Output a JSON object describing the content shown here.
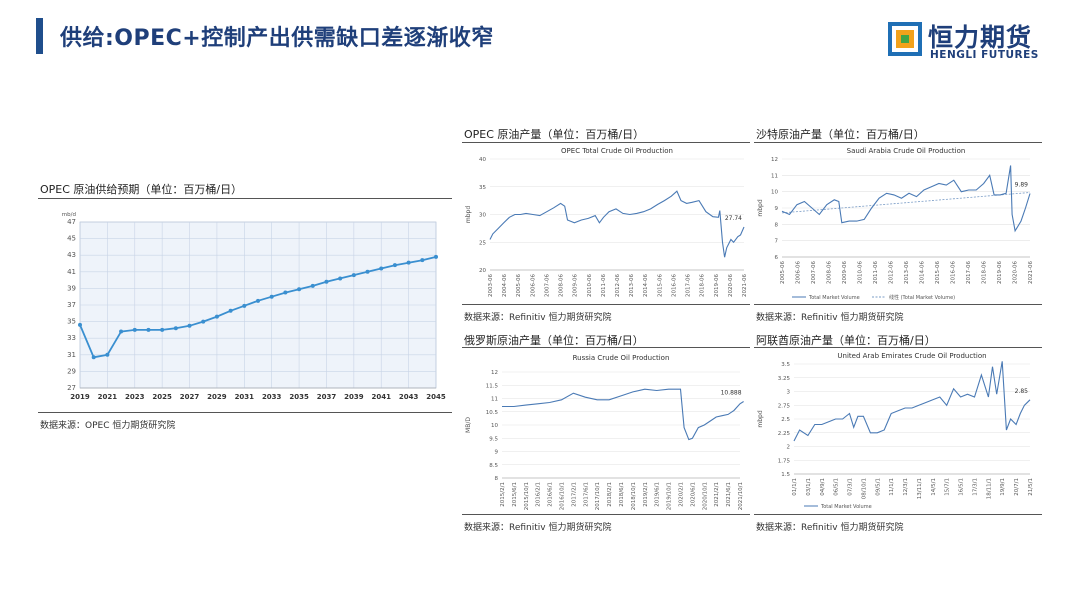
{
  "header": {
    "title": "供给:OPEC+控制产出供需缺口差逐渐收窄",
    "logo_cn": "恒力期货",
    "logo_en": "HENGLI FUTURES"
  },
  "colors": {
    "accent": "#1f4e8c",
    "line": "#4a7ab5",
    "trend": "#7a9cc6"
  },
  "panels": {
    "opec_forecast": {
      "title": "OPEC 原油供给预期（单位：百万桶/日）",
      "source": "数据来源：OPEC 恒力期货研究院"
    },
    "opec_prod": {
      "title": "OPEC 原油产量（单位：百万桶/日）",
      "source": "数据来源：Refinitiv 恒力期货研究院"
    },
    "saudi": {
      "title": "沙特原油产量（单位：百万桶/日）",
      "source": "数据来源：Refinitiv 恒力期货研究院"
    },
    "russia": {
      "title": "俄罗斯原油产量（单位：百万桶/日）",
      "source": "数据来源：Refinitiv 恒力期货研究院"
    },
    "uae": {
      "title": "阿联酋原油产量（单位：百万桶/日）",
      "source": "数据来源：Refinitiv 恒力期货研究院"
    }
  },
  "chart_data": [
    {
      "id": "opec_forecast",
      "type": "line",
      "ylabel": "mb/d",
      "ylim": [
        27,
        47
      ],
      "yticks": [
        27,
        29,
        31,
        33,
        35,
        37,
        39,
        41,
        43,
        45,
        47
      ],
      "x": [
        2019,
        2020,
        2021,
        2022,
        2023,
        2024,
        2025,
        2026,
        2027,
        2028,
        2029,
        2030,
        2031,
        2032,
        2033,
        2034,
        2035,
        2036,
        2037,
        2038,
        2039,
        2040,
        2041,
        2042,
        2043,
        2044,
        2045
      ],
      "xticks": [
        2019,
        2021,
        2023,
        2025,
        2027,
        2029,
        2031,
        2033,
        2035,
        2037,
        2039,
        2041,
        2043,
        2045
      ],
      "values": [
        34.6,
        30.7,
        31.0,
        33.8,
        34.0,
        34.0,
        34.0,
        34.2,
        34.5,
        35.0,
        35.6,
        36.3,
        36.9,
        37.5,
        38.0,
        38.5,
        38.9,
        39.3,
        39.8,
        40.2,
        40.6,
        41.0,
        41.4,
        41.8,
        42.1,
        42.4,
        42.8
      ],
      "grid": true
    },
    {
      "id": "opec_prod",
      "type": "line",
      "title": "OPEC Total Crude Oil Production",
      "ylabel": "mbpd",
      "ylim": [
        20,
        40
      ],
      "yticks": [
        20,
        25,
        30,
        35,
        40
      ],
      "xticks": [
        "2003-06",
        "2004-06",
        "2005-06",
        "2006-06",
        "2007-06",
        "2008-06",
        "2009-06",
        "2010-06",
        "2011-06",
        "2012-06",
        "2013-06",
        "2014-06",
        "2015-06",
        "2016-06",
        "2017-06",
        "2018-06",
        "2019-06",
        "2020-06",
        "2021-06"
      ],
      "x": [
        2003.4,
        2003.6,
        2004.0,
        2004.4,
        2004.8,
        2005.2,
        2005.6,
        2006.0,
        2006.5,
        2007.0,
        2007.5,
        2008.0,
        2008.5,
        2008.8,
        2009.0,
        2009.5,
        2010.0,
        2010.5,
        2011.0,
        2011.3,
        2011.6,
        2012.0,
        2012.5,
        2013.0,
        2013.5,
        2014.0,
        2014.5,
        2015.0,
        2015.5,
        2016.0,
        2016.5,
        2016.9,
        2017.2,
        2017.6,
        2018.0,
        2018.5,
        2019.0,
        2019.5,
        2019.9,
        2020.0,
        2020.2,
        2020.35,
        2020.5,
        2020.8,
        2021.0,
        2021.3,
        2021.5,
        2021.75
      ],
      "values": [
        25.5,
        26.5,
        27.5,
        28.5,
        29.5,
        30.0,
        30.0,
        30.2,
        30.0,
        29.8,
        30.5,
        31.2,
        32.0,
        31.5,
        29.0,
        28.5,
        29.0,
        29.3,
        29.8,
        28.5,
        29.5,
        30.5,
        31.0,
        30.2,
        30.0,
        30.2,
        30.5,
        31.0,
        31.8,
        32.5,
        33.3,
        34.2,
        32.5,
        32.0,
        32.2,
        32.5,
        30.5,
        29.6,
        29.5,
        30.7,
        25.0,
        22.3,
        24.0,
        25.5,
        25.0,
        26.0,
        26.3,
        27.74
      ],
      "end_label": "27.74",
      "grid": true
    },
    {
      "id": "saudi",
      "type": "line",
      "title": "Saudi Arabia Crude Oil Production",
      "ylabel": "mbpd",
      "ylim": [
        6,
        12
      ],
      "yticks": [
        6,
        7,
        8,
        9,
        10,
        11,
        12
      ],
      "xticks": [
        "2005-06",
        "2006-06",
        "2007-06",
        "2008-06",
        "2009-06",
        "2010-06",
        "2011-06",
        "2012-06",
        "2013-06",
        "2014-06",
        "2015-06",
        "2016-06",
        "2017-06",
        "2018-06",
        "2019-06",
        "2020-06",
        "2021-06"
      ],
      "x": [
        2005.0,
        2005.5,
        2006.0,
        2006.5,
        2007.0,
        2007.5,
        2008.0,
        2008.5,
        2008.8,
        2009.0,
        2009.5,
        2010.0,
        2010.5,
        2011.0,
        2011.5,
        2012.0,
        2012.5,
        2013.0,
        2013.5,
        2014.0,
        2014.5,
        2015.0,
        2015.5,
        2016.0,
        2016.5,
        2017.0,
        2017.5,
        2018.0,
        2018.5,
        2018.9,
        2019.2,
        2019.6,
        2020.0,
        2020.3,
        2020.4,
        2020.6,
        2021.0,
        2021.3,
        2021.6
      ],
      "values": [
        8.8,
        8.6,
        9.2,
        9.4,
        9.0,
        8.6,
        9.2,
        9.5,
        9.4,
        8.1,
        8.2,
        8.2,
        8.3,
        9.0,
        9.6,
        9.9,
        9.8,
        9.6,
        9.9,
        9.7,
        10.1,
        10.3,
        10.5,
        10.4,
        10.7,
        10.0,
        10.1,
        10.1,
        10.5,
        11.0,
        9.8,
        9.8,
        9.9,
        11.6,
        8.6,
        7.6,
        8.2,
        9.0,
        9.89
      ],
      "trend_x": [
        2005.0,
        2021.6
      ],
      "trend_values": [
        8.7,
        9.95
      ],
      "end_label": "9.89",
      "legend": [
        "Total Market Volume",
        "线性 (Total Market Volume)"
      ],
      "grid": true
    },
    {
      "id": "russia",
      "type": "line",
      "title": "Russia Crude Oil Production",
      "ylabel": "MB/D",
      "ylim": [
        8,
        12
      ],
      "yticks": [
        8,
        8.5,
        9,
        9.5,
        10,
        10.5,
        11,
        11.5,
        12
      ],
      "xticks": [
        "2015/2/1",
        "2015/6/1",
        "2015/10/1",
        "2016/2/1",
        "2016/6/1",
        "2016/10/1",
        "2017/2/1",
        "2017/6/1",
        "2017/10/1",
        "2018/2/1",
        "2018/6/1",
        "2018/10/1",
        "2019/2/1",
        "2019/6/1",
        "2019/10/1",
        "2020/2/1",
        "2020/6/1",
        "2020/10/1",
        "2021/2/1",
        "2021/6/1",
        "2021/10/1"
      ],
      "x": [
        0,
        1,
        2,
        3,
        4,
        5,
        6,
        7,
        8,
        9,
        10,
        11,
        12,
        13,
        14,
        15,
        15.3,
        15.7,
        16,
        16.5,
        17,
        17.5,
        18,
        18.5,
        19,
        19.5,
        20,
        20.3
      ],
      "values": [
        10.7,
        10.7,
        10.75,
        10.8,
        10.85,
        10.95,
        11.2,
        11.05,
        10.95,
        10.95,
        11.1,
        11.25,
        11.35,
        11.3,
        11.35,
        11.35,
        9.9,
        9.45,
        9.5,
        9.9,
        10.0,
        10.15,
        10.3,
        10.35,
        10.4,
        10.55,
        10.8,
        10.888
      ],
      "end_label": "10.888",
      "grid": true
    },
    {
      "id": "uae",
      "type": "line",
      "title": "United Arab Emirates Crude Oil Production",
      "ylabel": "mbpd",
      "ylim": [
        1.5,
        3.5
      ],
      "yticks": [
        1.5,
        1.75,
        2,
        2.25,
        2.5,
        2.75,
        3,
        3.25,
        3.5
      ],
      "xticks": [
        "01/1/1",
        "03/1/1",
        "04/9/1",
        "06/5/1",
        "07/3/1",
        "08/10/1",
        "09/5/1",
        "11/1/1",
        "12/3/1",
        "13/11/1",
        "14/5/1",
        "15/7/1",
        "16/5/1",
        "17/3/1",
        "18/11/1",
        "19/9/1",
        "20/7/1",
        "21/5/1"
      ],
      "x": [
        0,
        0.4,
        1,
        1.5,
        2,
        2.5,
        3,
        3.5,
        4,
        4.3,
        4.6,
        5,
        5.5,
        6,
        6.5,
        7,
        7.5,
        8,
        8.5,
        9,
        9.5,
        10,
        10.5,
        11,
        11.5,
        12,
        12.5,
        13,
        13.5,
        14,
        14.3,
        14.6,
        15,
        15.3,
        15.6,
        16,
        16.3,
        16.6,
        17
      ],
      "values": [
        2.1,
        2.3,
        2.2,
        2.4,
        2.4,
        2.45,
        2.5,
        2.5,
        2.6,
        2.35,
        2.55,
        2.55,
        2.25,
        2.25,
        2.3,
        2.6,
        2.65,
        2.7,
        2.7,
        2.75,
        2.8,
        2.85,
        2.9,
        2.75,
        3.05,
        2.9,
        2.95,
        2.9,
        3.3,
        2.9,
        3.45,
        2.95,
        3.55,
        2.3,
        2.5,
        2.4,
        2.6,
        2.75,
        2.85
      ],
      "end_label": "2.85",
      "legend": [
        "Total Market Volume"
      ],
      "grid": true
    }
  ]
}
